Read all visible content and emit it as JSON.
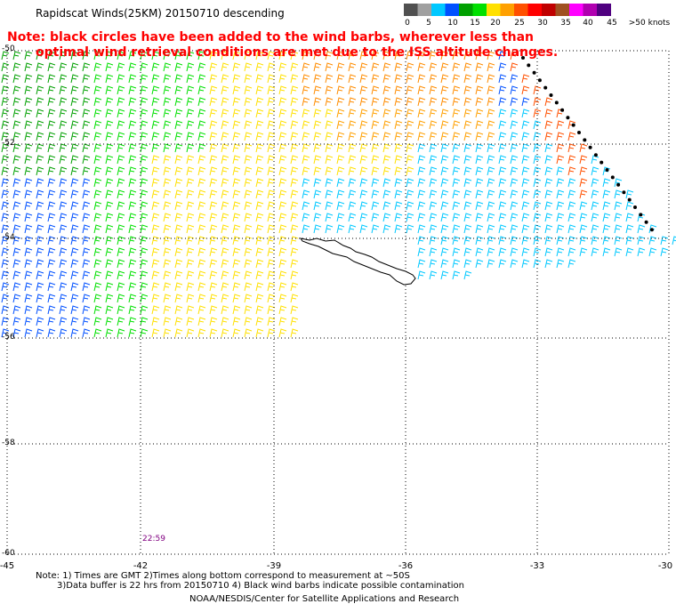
{
  "title": "Rapidscat Winds(25KM) 20150710 descending",
  "note": {
    "line1": "Note: black circles have been added to the wind barbs, wherever less than",
    "line2": "optimal wind retrieval conditions are met due to the ISS altitude changes."
  },
  "colorbar": {
    "labels": [
      "0",
      "5",
      "10",
      "15",
      "20",
      "25",
      "30",
      "35",
      "40",
      "45",
      ">50 knots"
    ],
    "colors": [
      "#505050",
      "#a0a0a0",
      "#00c8ff",
      "#0050ff",
      "#00a000",
      "#00e000",
      "#ffe000",
      "#ffa000",
      "#ff5000",
      "#ff0000",
      "#c00000",
      "#a05020",
      "#ff00ff",
      "#b000b0",
      "#500080"
    ]
  },
  "map": {
    "lat_labels": [
      "-50",
      "-52",
      "-54",
      "-56",
      "-58",
      "-60"
    ],
    "lon_labels": [
      "-45",
      "-42",
      "-39",
      "-36",
      "-33",
      "-30"
    ],
    "pass_time": "22:59",
    "region": "South Georgia Island"
  },
  "footer": {
    "line1": "Note: 1) Times are GMT 2)Times along bottom correspond to measurement at ~50S",
    "line2": "3)Data buffer is 22 hrs from 20150710 4) Black wind barbs indicate possible contamination",
    "line3": "NOAA/NESDIS/Center for Satellite Applications and Research"
  }
}
